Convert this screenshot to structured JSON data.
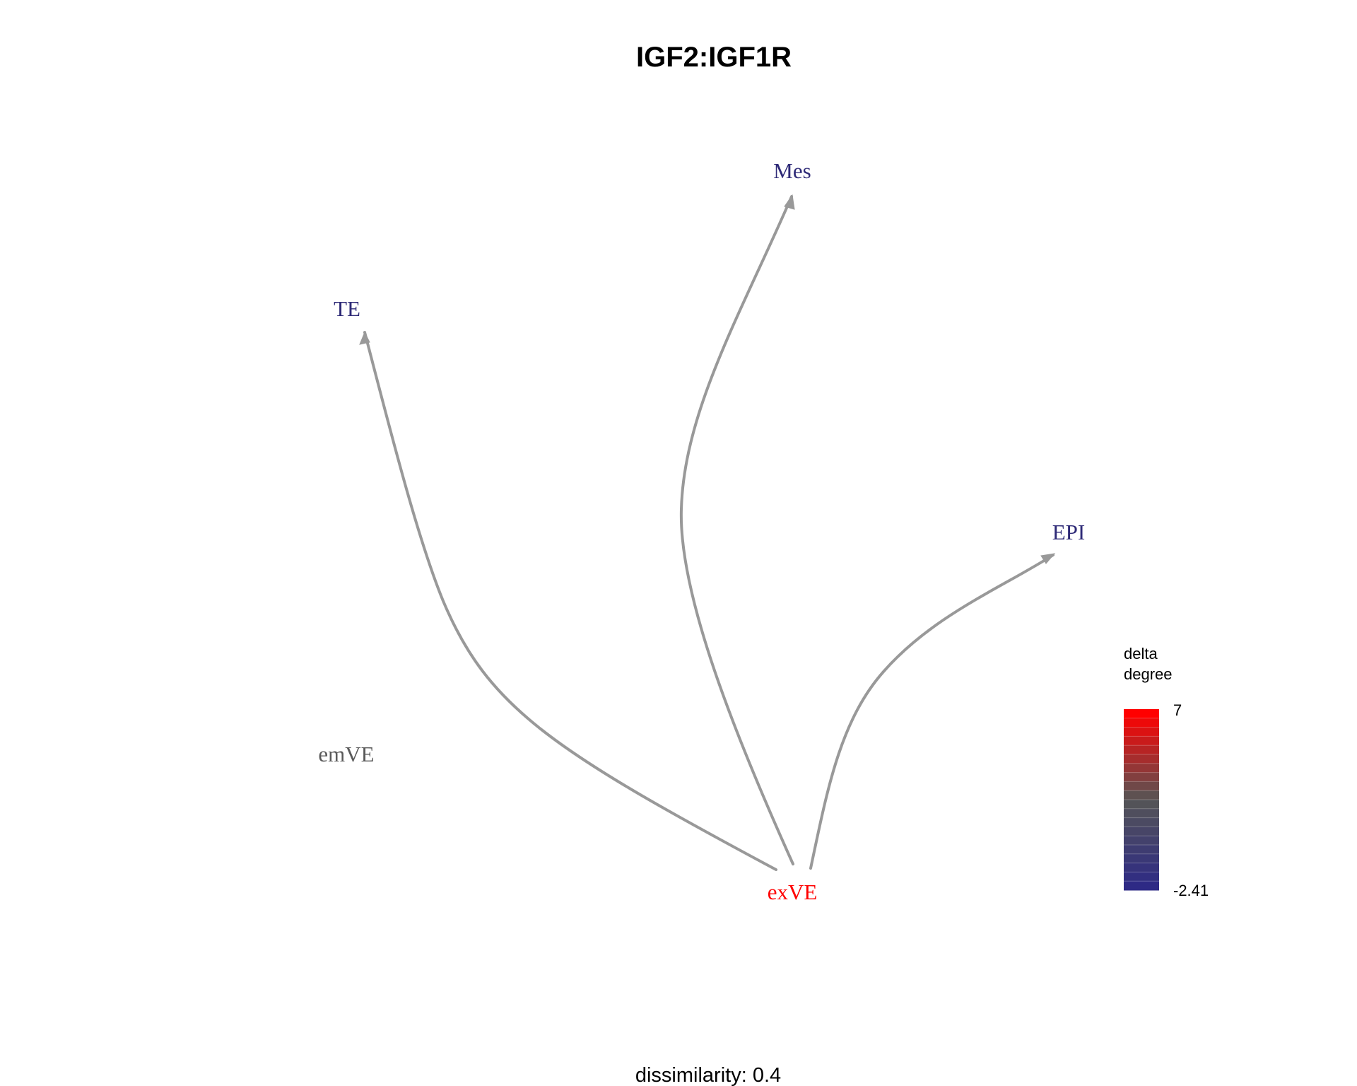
{
  "title": "IGF2:IGF1R",
  "footer": "dissimilarity: 0.4",
  "nodes": [
    {
      "id": "Mes",
      "label": "Mes",
      "color": "#2E2A77"
    },
    {
      "id": "TE",
      "label": "TE",
      "color": "#2E2A77"
    },
    {
      "id": "EPI",
      "label": "EPI",
      "color": "#2E2A77"
    },
    {
      "id": "emVE",
      "label": "emVE",
      "color": "#5A5A5A"
    },
    {
      "id": "exVE",
      "label": "exVE",
      "color": "#FF0000"
    }
  ],
  "edges": [
    {
      "from": "exVE",
      "to": "TE"
    },
    {
      "from": "exVE",
      "to": "Mes"
    },
    {
      "from": "exVE",
      "to": "EPI"
    }
  ],
  "edge_color": "#999999",
  "legend": {
    "title_line1": "delta",
    "title_line2": "degree",
    "max_label": "7",
    "min_label": "-2.41",
    "color_high": "#FF0000",
    "color_mid": "#555555",
    "color_low": "#2E2A85"
  }
}
